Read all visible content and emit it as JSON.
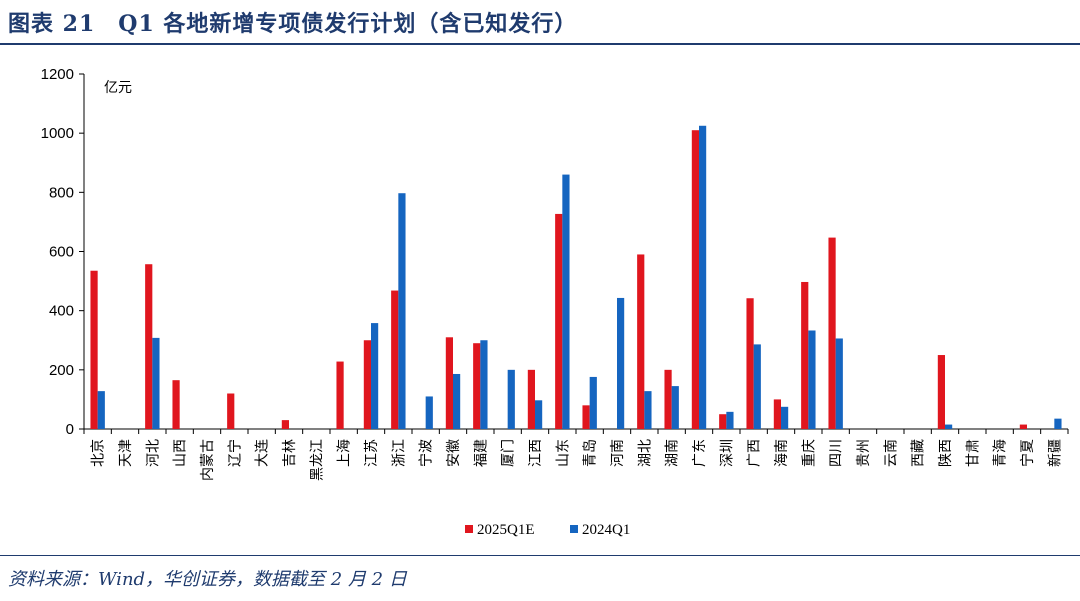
{
  "header": {
    "title": "图表 21　Q1 各地新增专项债发行计划（含已知发行）"
  },
  "footer": {
    "source": "资料来源：Wind，华创证券，数据截至 2 月 2 日"
  },
  "colors": {
    "series_2025": "#e0161e",
    "series_2024": "#1565c0",
    "rule": "#1f3b6e"
  },
  "chart_data": {
    "type": "bar",
    "unit_label": "亿元",
    "ylim": [
      0,
      1200
    ],
    "yticks": [
      0,
      200,
      400,
      600,
      800,
      1000,
      1200
    ],
    "categories": [
      "北京",
      "天津",
      "河北",
      "山西",
      "内蒙古",
      "辽宁",
      "大连",
      "吉林",
      "黑龙江",
      "上海",
      "江苏",
      "浙江",
      "宁波",
      "安徽",
      "福建",
      "厦门",
      "江西",
      "山东",
      "青岛",
      "河南",
      "湖北",
      "湖南",
      "广东",
      "深圳",
      "广西",
      "海南",
      "重庆",
      "四川",
      "贵州",
      "云南",
      "西藏",
      "陕西",
      "甘肃",
      "青海",
      "宁夏",
      "新疆"
    ],
    "series": [
      {
        "name": "2025Q1E",
        "values": [
          535,
          0,
          557,
          165,
          0,
          120,
          0,
          30,
          0,
          228,
          300,
          468,
          0,
          310,
          290,
          0,
          200,
          727,
          80,
          0,
          590,
          200,
          1010,
          50,
          442,
          100,
          497,
          647,
          0,
          0,
          0,
          250,
          0,
          0,
          15,
          0
        ]
      },
      {
        "name": "2024Q1",
        "values": [
          128,
          0,
          308,
          0,
          0,
          0,
          0,
          0,
          0,
          0,
          358,
          797,
          110,
          186,
          300,
          200,
          97,
          860,
          176,
          443,
          128,
          145,
          1025,
          58,
          286,
          75,
          333,
          306,
          0,
          0,
          0,
          15,
          0,
          0,
          0,
          35
        ]
      }
    ],
    "legend_position": "bottom-center"
  }
}
